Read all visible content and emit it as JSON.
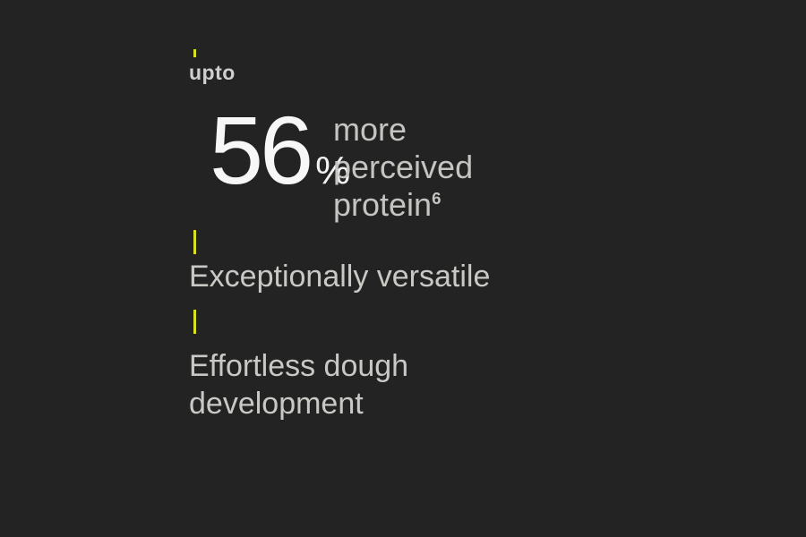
{
  "slide": {
    "background_color": "#232323",
    "accent_color": "#d9e021"
  },
  "headline_stat": {
    "qualifier": "upto",
    "value": "56",
    "unit": "%",
    "description": {
      "line1": "more",
      "line2": "perceived",
      "line3": "protein",
      "footnote_marker": "6"
    }
  },
  "features": [
    {
      "label": "Exceptionally versatile"
    },
    {
      "label": "Effortless dough development"
    }
  ]
}
